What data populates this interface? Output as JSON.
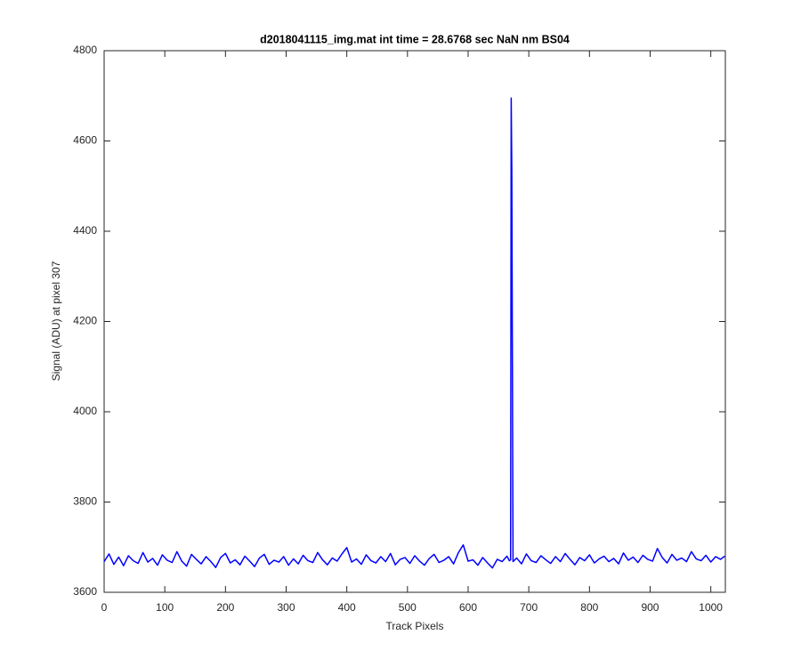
{
  "chart_data": {
    "type": "line",
    "title": "d2018041115_img.mat int time = 28.6768 sec  NaN nm BS04",
    "xlabel": "Track Pixels",
    "ylabel": "Signal (ADU) at pixel 307",
    "color": "#0000ff",
    "xlim": [
      0,
      1024
    ],
    "ylim": [
      3600,
      4800
    ],
    "xticks": [
      0,
      100,
      200,
      300,
      400,
      500,
      600,
      700,
      800,
      900,
      1000
    ],
    "yticks": [
      3600,
      3800,
      4000,
      4200,
      4400,
      4600,
      4800
    ],
    "grid": false,
    "x": [
      0,
      8,
      16,
      24,
      32,
      40,
      48,
      56,
      64,
      72,
      80,
      88,
      96,
      104,
      112,
      120,
      128,
      136,
      144,
      152,
      160,
      168,
      176,
      184,
      192,
      200,
      208,
      216,
      224,
      232,
      240,
      248,
      256,
      264,
      272,
      280,
      288,
      296,
      304,
      312,
      320,
      328,
      336,
      344,
      352,
      360,
      368,
      376,
      384,
      392,
      400,
      408,
      416,
      424,
      432,
      440,
      448,
      456,
      464,
      472,
      480,
      488,
      496,
      504,
      512,
      520,
      528,
      536,
      544,
      552,
      560,
      568,
      576,
      584,
      592,
      600,
      608,
      616,
      624,
      632,
      640,
      648,
      656,
      664,
      668,
      670,
      671,
      672,
      674,
      680,
      688,
      696,
      704,
      712,
      720,
      728,
      736,
      744,
      752,
      760,
      768,
      776,
      784,
      792,
      800,
      808,
      816,
      824,
      832,
      840,
      848,
      856,
      864,
      872,
      880,
      888,
      896,
      904,
      912,
      920,
      928,
      936,
      944,
      952,
      960,
      968,
      976,
      984,
      992,
      1000,
      1008,
      1016,
      1023
    ],
    "values": [
      3668,
      3685,
      3662,
      3678,
      3659,
      3681,
      3670,
      3664,
      3688,
      3667,
      3675,
      3660,
      3683,
      3671,
      3666,
      3690,
      3669,
      3658,
      3684,
      3673,
      3663,
      3679,
      3668,
      3655,
      3677,
      3686,
      3665,
      3672,
      3661,
      3680,
      3669,
      3657,
      3676,
      3684,
      3662,
      3671,
      3667,
      3679,
      3660,
      3674,
      3663,
      3682,
      3670,
      3666,
      3688,
      3672,
      3661,
      3676,
      3669,
      3685,
      3699,
      3667,
      3674,
      3662,
      3683,
      3670,
      3665,
      3679,
      3668,
      3686,
      3661,
      3673,
      3677,
      3664,
      3681,
      3669,
      3660,
      3675,
      3684,
      3666,
      3671,
      3679,
      3663,
      3688,
      3705,
      3669,
      3672,
      3660,
      3677,
      3665,
      3654,
      3673,
      3668,
      3680,
      3670,
      3672,
      4695,
      4535,
      3668,
      3676,
      3663,
      3685,
      3670,
      3666,
      3681,
      3672,
      3664,
      3679,
      3668,
      3686,
      3673,
      3661,
      3677,
      3670,
      3683,
      3665,
      3674,
      3680,
      3668,
      3675,
      3663,
      3687,
      3671,
      3678,
      3666,
      3682,
      3673,
      3669,
      3697,
      3677,
      3665,
      3684,
      3671,
      3676,
      3668,
      3690,
      3674,
      3670,
      3682,
      3667,
      3679,
      3673,
      3680
    ]
  }
}
